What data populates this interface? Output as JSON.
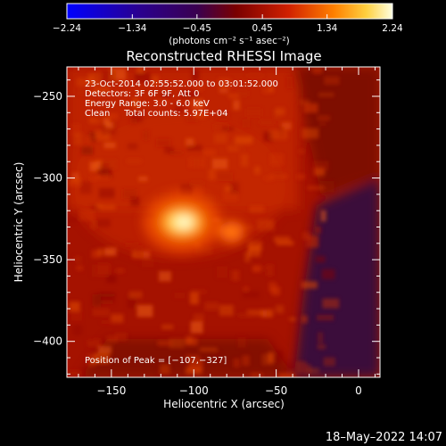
{
  "chart_data": {
    "type": "heatmap",
    "title": "Reconstructed RHESSI Image",
    "xlabel": "Heliocentric X (arcsec)",
    "ylabel": "Heliocentric Y (arcsec)",
    "xlim": [
      -177,
      13
    ],
    "ylim": [
      -422,
      -232
    ],
    "x_ticks": [
      -150,
      -100,
      -50,
      0
    ],
    "y_ticks": [
      -250,
      -300,
      -350,
      -400
    ],
    "x_tick_labels": [
      "−150",
      "−100",
      "−50",
      "0"
    ],
    "y_tick_labels": [
      "−250",
      "−300",
      "−350",
      "−400"
    ],
    "colorbar": {
      "min": -2.24,
      "max": 2.24,
      "ticks": [
        -2.24,
        -1.34,
        -0.45,
        0.45,
        1.34,
        2.24
      ],
      "tick_labels": [
        "−2.24",
        "−1.34",
        "−0.45",
        "0.45",
        "1.34",
        "2.24"
      ],
      "units": "(photons cm⁻² s⁻¹ asec⁻²)"
    },
    "annotations": [
      "23-Oct-2014 02:55:52.000 to 03:01:52.000",
      "Detectors: 3F 6F 9F, Att 0",
      "Energy Range: 3.0 - 6.0 keV",
      "Clean     Total counts: 5.97E+04"
    ],
    "peak_label": "Position of Peak = [−107,−327]",
    "peak": {
      "x": -107,
      "y": -327
    },
    "secondary_source": {
      "x": -77,
      "y": -333
    }
  },
  "footer": {
    "timestamp": "18–May–2022 14:07"
  }
}
